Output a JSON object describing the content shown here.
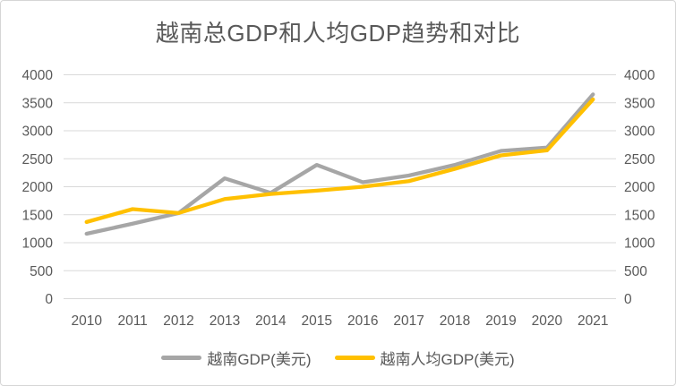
{
  "chart_data": {
    "type": "line",
    "title": "越南总GDP和人均GDP趋势和对比",
    "categories": [
      "2010",
      "2011",
      "2012",
      "2013",
      "2014",
      "2015",
      "2016",
      "2017",
      "2018",
      "2019",
      "2020",
      "2021"
    ],
    "series": [
      {
        "name": "越南GDP(美元)",
        "key": "vietnam-gdp-line",
        "color": "#a6a6a6",
        "values": [
          1160,
          1340,
          1530,
          2150,
          1890,
          2390,
          2080,
          2200,
          2390,
          2640,
          2700,
          3650
        ]
      },
      {
        "name": "越南人均GDP(美元)",
        "key": "vietnam-gdp-per-capita-line",
        "color": "#ffc000",
        "values": [
          1370,
          1600,
          1530,
          1780,
          1870,
          1930,
          2000,
          2100,
          2320,
          2560,
          2650,
          3560
        ]
      }
    ],
    "ylim": [
      0,
      4000
    ],
    "yticks": [
      0,
      500,
      1000,
      1500,
      2000,
      2500,
      3000,
      3500,
      4000
    ],
    "dual_axis": true,
    "grid": true,
    "legend_position": "bottom",
    "gridline_color": "#d9d9d9",
    "axis_text_color": "#595959",
    "title_color": "#595959"
  }
}
